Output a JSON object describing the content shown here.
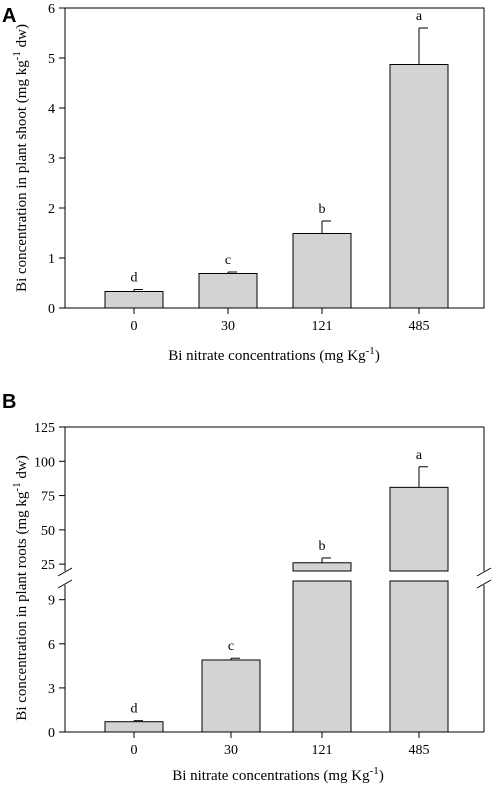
{
  "chart_data": [
    {
      "panel": "A",
      "type": "bar",
      "categories": [
        "0",
        "30",
        "121",
        "485"
      ],
      "values": [
        0.33,
        0.69,
        1.49,
        4.87
      ],
      "errors": [
        0.04,
        0.03,
        0.25,
        0.73
      ],
      "labels": [
        "d",
        "c",
        "b",
        "a"
      ],
      "xlabel": "Bi nitrate concentrations (mg Kg",
      "xlabel_sup": "-1",
      "xlabel_end": ")",
      "ylabel": "Bi concentration in plant shoot (mg kg",
      "ylabel_sup": "-1",
      "ylabel_end": " dw)",
      "ylim": [
        0,
        6
      ],
      "yticks": [
        "0",
        "1",
        "2",
        "3",
        "4",
        "5",
        "6"
      ],
      "bar_color": "#d3d3d3"
    },
    {
      "panel": "B",
      "type": "bar",
      "broken_axis": true,
      "categories": [
        "0",
        "30",
        "121",
        "485"
      ],
      "values": [
        0.7,
        4.9,
        26,
        81
      ],
      "errors": [
        0.07,
        0.12,
        3.5,
        15
      ],
      "labels": [
        "d",
        "c",
        "b",
        "a"
      ],
      "xlabel": "Bi nitrate concentrations (mg Kg",
      "xlabel_sup": "-1",
      "xlabel_end": ")",
      "ylabel": "Bi concentration in plant roots (mg kg",
      "ylabel_sup": "-1",
      "ylabel_end": " dw)",
      "lower_ylim": [
        0,
        10
      ],
      "upper_ylim": [
        20,
        125
      ],
      "lower_yticks": [
        "0",
        "3",
        "6",
        "9"
      ],
      "upper_yticks": [
        "25",
        "50",
        "75",
        "100",
        "125"
      ],
      "bar_color": "#d3d3d3"
    }
  ]
}
